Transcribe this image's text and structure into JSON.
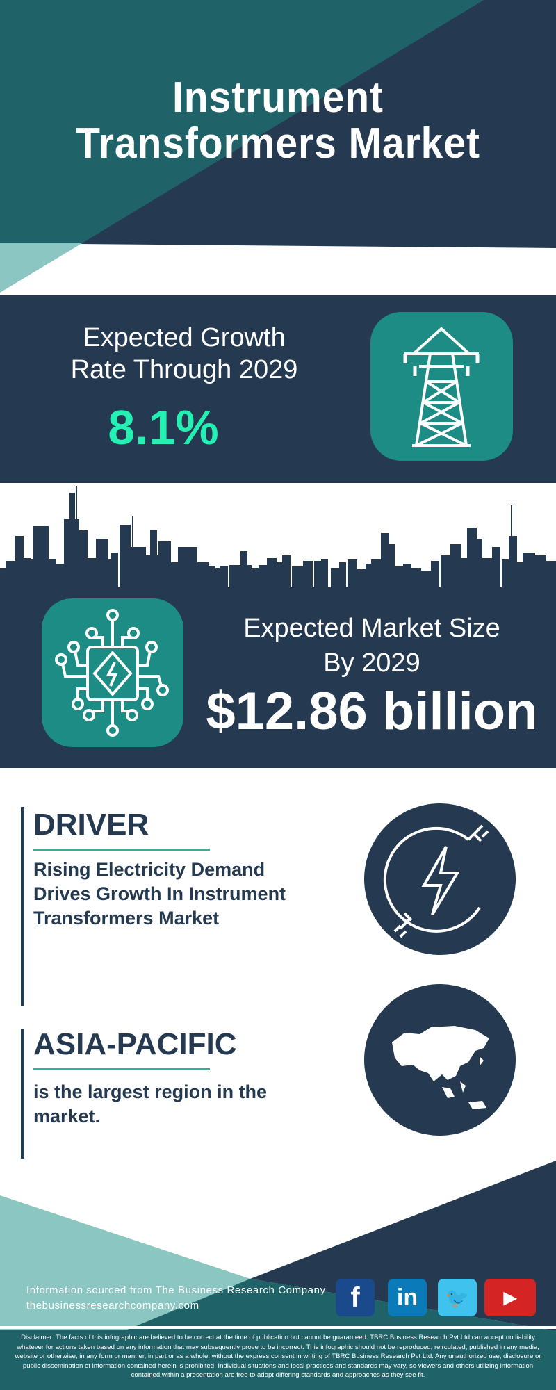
{
  "header": {
    "title_line1": "Instrument",
    "title_line2": "Transformers Market"
  },
  "growth": {
    "label_line1": "Expected Growth",
    "label_line2": "Rate Through 2029",
    "value": "8.1%",
    "icon": "transmission-tower-icon"
  },
  "market_size": {
    "label_line1": "Expected Market Size",
    "label_line2": "By 2029",
    "value": "$12.86 billion",
    "icon": "circuit-chip-lightning-icon"
  },
  "driver": {
    "heading": "DRIVER",
    "description": "Rising Electricity Demand Drives Growth In Instrument Transformers Market",
    "icon": "electric-plug-lightning-icon"
  },
  "region": {
    "heading": "ASIA-PACIFIC",
    "description": "is the largest region in the market.",
    "icon": "asia-map-icon"
  },
  "footer": {
    "source": "Information sourced from The Business Research Company",
    "website": "thebusinessresearchcompany.com",
    "social": [
      {
        "name": "facebook",
        "glyph": "f",
        "color": "#1b4a8c"
      },
      {
        "name": "linkedin",
        "glyph": "in",
        "color": "#0a7bb8"
      },
      {
        "name": "twitter",
        "glyph": "🐦",
        "color": "#3fc3ee"
      },
      {
        "name": "youtube",
        "glyph": "▶",
        "color": "#d42424"
      }
    ],
    "disclaimer": "Disclaimer: The facts of this infographic are believed to be correct at the time of publication but cannot be guaranteed. TBRC Business Research Pvt Ltd can accept no liability whatever for actions taken based on any information that may subsequently prove to be incorrect. This infographic should not be reproduced, reirculated, published in any media, website or otherwise, in any form or manner, in part or as a whole, without the express consent in writing of TBRC Business Research Pvt Ltd. Any unauthorized use, disclosure or public dissemination of information contained herein is prohibited. Individual situations and local practices and standards may vary, so viewers and others utilizing information contained within a presentation are free to adopt differing standards and approaches as they see fit."
  },
  "colors": {
    "navy": "#253a50",
    "teal": "#1f6369",
    "light_teal": "#8cc6c2",
    "icon_teal": "#1c8c84",
    "accent_green": "#25f0b4"
  }
}
